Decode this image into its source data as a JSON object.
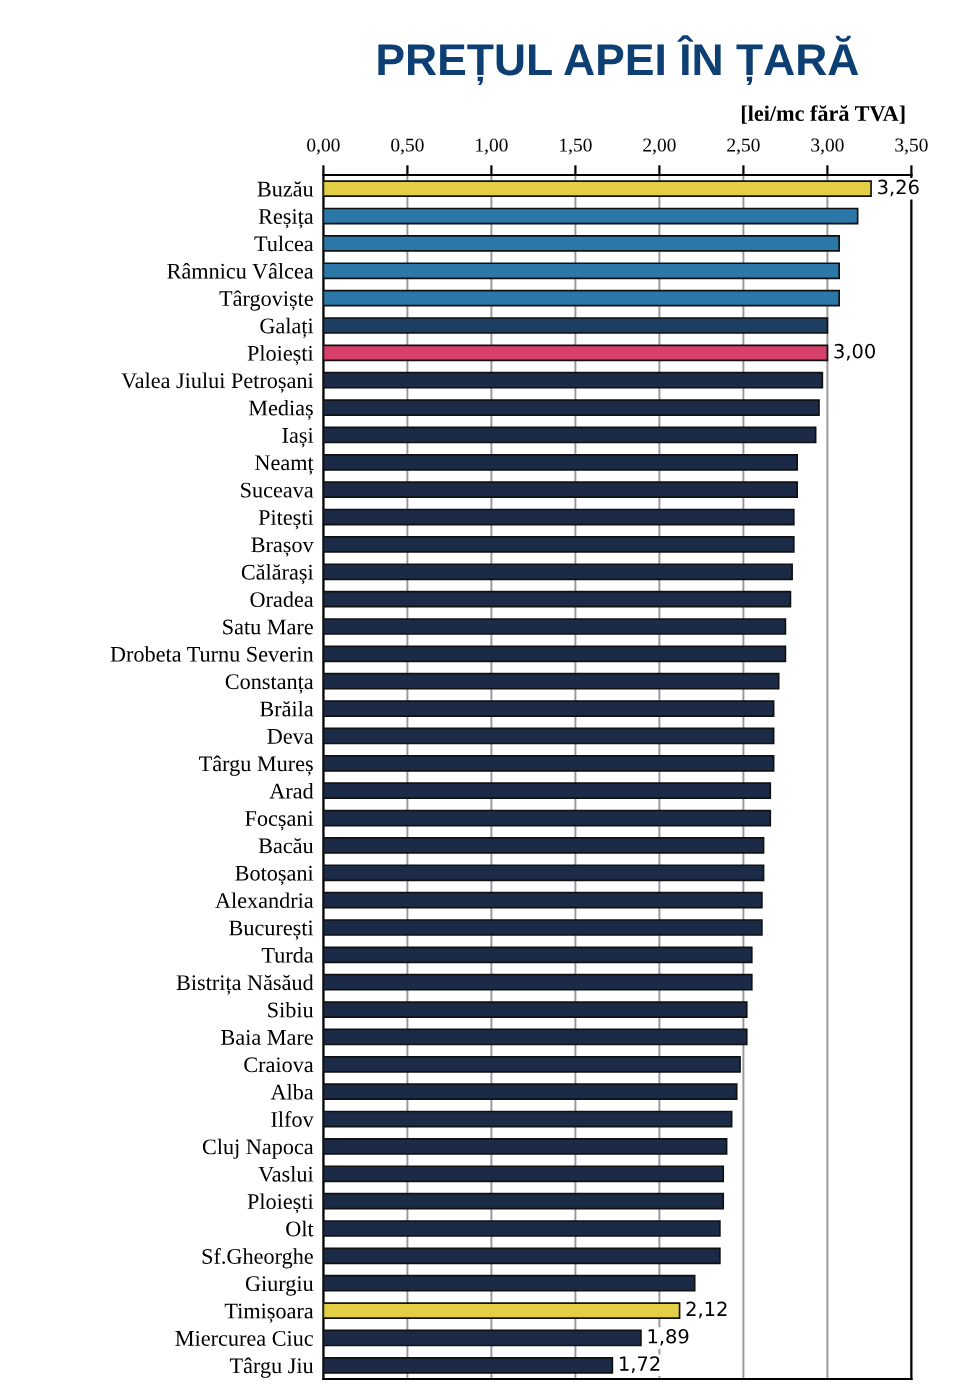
{
  "chart_data": {
    "type": "bar",
    "orientation": "horizontal",
    "title": "PREȚUL APEI ÎN ȚARĂ",
    "xlabel": "[lei/mc fără TVA]",
    "categories": [
      "Buzău",
      "Reșița",
      "Tulcea",
      "Râmnicu Vâlcea",
      "Târgoviște",
      "Galați",
      "Ploiești",
      "Valea Jiului Petroșani",
      "Mediaș",
      "Iași",
      "Neamț",
      "Suceava",
      "Pitești",
      "Brașov",
      "Călărași",
      "Oradea",
      "Satu Mare",
      "Drobeta Turnu Severin",
      "Constanța",
      "Brăila",
      "Deva",
      "Târgu Mureș",
      "Arad",
      "Focșani",
      "Bacău",
      "Botoșani",
      "Alexandria",
      "București",
      "Turda",
      "Bistrița Năsăud",
      "Sibiu",
      "Baia Mare",
      "Craiova",
      "Alba",
      "Ilfov",
      "Cluj Napoca",
      "Vaslui",
      "Ploiești",
      "Olt",
      "Sf.Gheorghe",
      "Giurgiu",
      "Timișoara",
      "Miercurea Ciuc",
      "Târgu Jiu"
    ],
    "values": [
      3.26,
      3.18,
      3.07,
      3.07,
      3.07,
      3.0,
      3.0,
      2.97,
      2.95,
      2.93,
      2.82,
      2.82,
      2.8,
      2.8,
      2.79,
      2.78,
      2.75,
      2.75,
      2.71,
      2.68,
      2.68,
      2.68,
      2.66,
      2.66,
      2.62,
      2.62,
      2.61,
      2.61,
      2.55,
      2.55,
      2.52,
      2.52,
      2.48,
      2.46,
      2.43,
      2.4,
      2.38,
      2.38,
      2.36,
      2.36,
      2.21,
      2.12,
      1.89,
      1.72
    ],
    "colors": [
      "#e3cf45",
      "#2b77a8",
      "#2b77a8",
      "#2b77a8",
      "#2b77a8",
      "#1d3d63",
      "#d6406a",
      "#1b2b47",
      "#1b2b47",
      "#1b2b47",
      "#1b2b47",
      "#1b2b47",
      "#1b2b47",
      "#1b2b47",
      "#1b2b47",
      "#1b2b47",
      "#1b2b47",
      "#1b2b47",
      "#1b2b47",
      "#1b2b47",
      "#1b2b47",
      "#1b2b47",
      "#1b2b47",
      "#1b2b47",
      "#1b2b47",
      "#1b2b47",
      "#1b2b47",
      "#1b2b47",
      "#1b2b47",
      "#1b2b47",
      "#1b2b47",
      "#1b2b47",
      "#1b2b47",
      "#1b2b47",
      "#1b2b47",
      "#1b2b47",
      "#1b2b47",
      "#1b2b47",
      "#1b2b47",
      "#1b2b47",
      "#1b2b47",
      "#e3cf45",
      "#1b2b47",
      "#1b2b47"
    ],
    "value_labels": [
      "3,26",
      null,
      null,
      null,
      null,
      null,
      "3,00",
      null,
      null,
      null,
      null,
      null,
      null,
      null,
      null,
      null,
      null,
      null,
      null,
      null,
      null,
      null,
      null,
      null,
      null,
      null,
      null,
      null,
      null,
      null,
      null,
      null,
      null,
      null,
      null,
      null,
      null,
      null,
      null,
      null,
      null,
      "2,12",
      "1,89",
      "1,72"
    ],
    "xlim": [
      0,
      3.5
    ],
    "xticks": [
      {
        "value": 0,
        "label": "0,00"
      },
      {
        "value": 0.5,
        "label": "0,50"
      },
      {
        "value": 1,
        "label": "1,00"
      },
      {
        "value": 1.5,
        "label": "1,50"
      },
      {
        "value": 2,
        "label": "2,00"
      },
      {
        "value": 2.5,
        "label": "2,50"
      },
      {
        "value": 3,
        "label": "3,00"
      },
      {
        "value": 3.5,
        "label": "3,50"
      }
    ],
    "grid": "x"
  }
}
